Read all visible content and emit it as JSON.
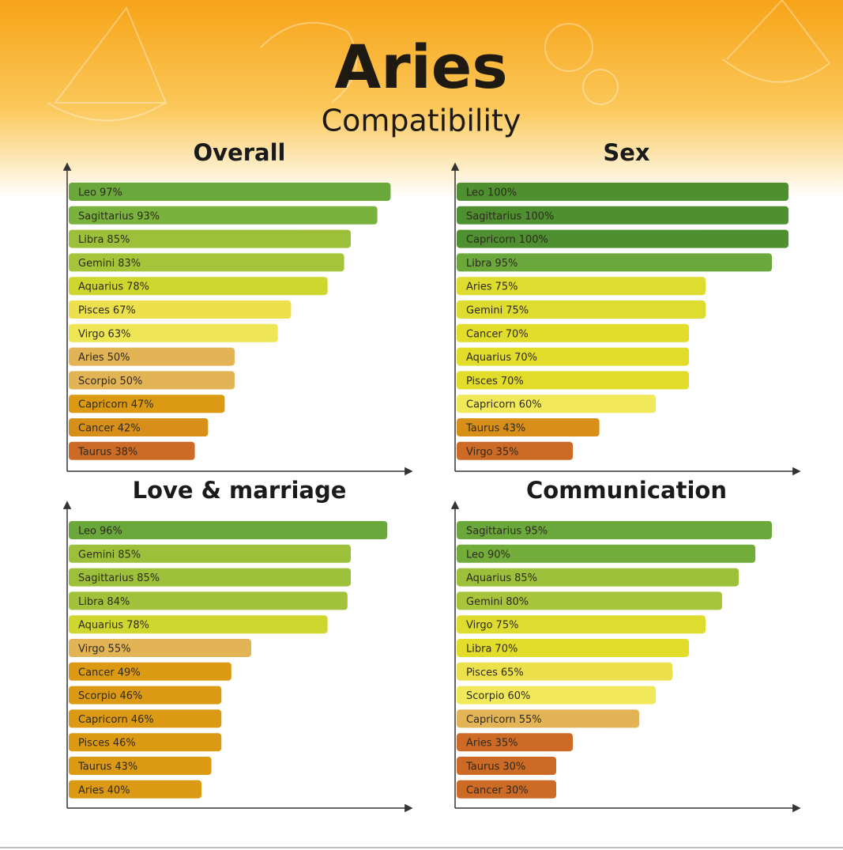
{
  "header": {
    "title": "Aries",
    "subtitle": "Compatibility"
  },
  "chart_data": [
    {
      "type": "bar",
      "title": "Overall",
      "categories": [
        "Leo",
        "Sagittarius",
        "Libra",
        "Gemini",
        "Aquarius",
        "Pisces",
        "Virgo",
        "Aries",
        "Scorpio",
        "Capricorn",
        "Cancer",
        "Taurus"
      ],
      "values": [
        97,
        93,
        85,
        83,
        78,
        67,
        63,
        50,
        50,
        47,
        42,
        38
      ],
      "value_labels": [
        "97%",
        "93%",
        "85%",
        "83%",
        "78%",
        "67%",
        "63%",
        "50%",
        "50%",
        "47%",
        "42%",
        "38%"
      ],
      "colors": [
        "#6aa83c",
        "#79b23c",
        "#9dc03a",
        "#a5c43a",
        "#cfd72e",
        "#ece04c",
        "#efe655",
        "#e3b456",
        "#e3b456",
        "#dc9a14",
        "#d88f1a",
        "#cd6a26"
      ],
      "xlim": [
        0,
        100
      ]
    },
    {
      "type": "bar",
      "title": "Sex",
      "categories": [
        "Leo",
        "Sagittarius",
        "Capricorn",
        "Libra",
        "Aries",
        "Gemini",
        "Cancer",
        "Aquarius",
        "Pisces",
        "Capricorn",
        "Taurus",
        "Virgo"
      ],
      "values": [
        100,
        100,
        100,
        95,
        75,
        75,
        70,
        70,
        70,
        60,
        43,
        35
      ],
      "value_labels": [
        "100%",
        "100%",
        "100%",
        "95%",
        "75%",
        "75%",
        "70%",
        "70%",
        "70%",
        "60%",
        "43%",
        "35%"
      ],
      "colors": [
        "#4e8f30",
        "#4e8f30",
        "#4e8f30",
        "#6aa83c",
        "#dedc2e",
        "#dedc2e",
        "#e2dc2a",
        "#e2dc2a",
        "#e2dc2a",
        "#f1e85a",
        "#d88f1a",
        "#cd6a26"
      ],
      "xlim": [
        0,
        100
      ]
    },
    {
      "type": "bar",
      "title": "Love & marriage",
      "categories": [
        "Leo",
        "Gemini",
        "Sagittarius",
        "Libra",
        "Aquarius",
        "Virgo",
        "Cancer",
        "Scorpio",
        "Capricorn",
        "Pisces",
        "Taurus",
        "Aries"
      ],
      "values": [
        96,
        85,
        85,
        84,
        78,
        55,
        49,
        46,
        46,
        46,
        43,
        40
      ],
      "value_labels": [
        "96%",
        "85%",
        "85%",
        "84%",
        "78%",
        "55%",
        "49%",
        "46%",
        "46%",
        "46%",
        "43%",
        "40%"
      ],
      "colors": [
        "#6aa83c",
        "#9dc03a",
        "#9dc03a",
        "#a1c23a",
        "#cfd72e",
        "#e3b456",
        "#dc9a14",
        "#dc9a14",
        "#dc9a14",
        "#dc9a14",
        "#dc9a14",
        "#dc9a14"
      ],
      "xlim": [
        0,
        100
      ]
    },
    {
      "type": "bar",
      "title": "Communication",
      "categories": [
        "Sagittarius",
        "Leo",
        "Aquarius",
        "Gemini",
        "Virgo",
        "Libra",
        "Pisces",
        "Scorpio",
        "Capricorn",
        "Aries",
        "Taurus",
        "Cancer"
      ],
      "values": [
        95,
        90,
        85,
        80,
        75,
        70,
        65,
        60,
        55,
        35,
        30,
        30
      ],
      "value_labels": [
        "95%",
        "90%",
        "85%",
        "80%",
        "75%",
        "70%",
        "65%",
        "60%",
        "55%",
        "35%",
        "30%",
        "30%"
      ],
      "colors": [
        "#6aa83c",
        "#72ac3a",
        "#9dc03a",
        "#a8c43a",
        "#dedc2e",
        "#e2dc2a",
        "#ece04c",
        "#f1e85a",
        "#e3b456",
        "#cd6a26",
        "#cd6a26",
        "#cd6a26"
      ],
      "xlim": [
        0,
        100
      ]
    }
  ]
}
